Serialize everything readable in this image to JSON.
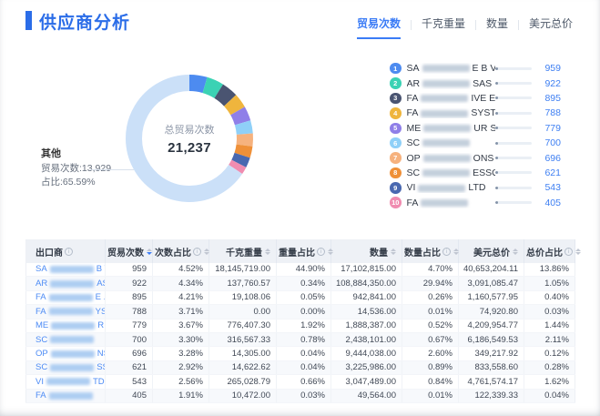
{
  "page": {
    "title": "供应商分析"
  },
  "tabs": [
    {
      "label": "贸易次数",
      "active": true,
      "divider": true
    },
    {
      "label": "千克重量",
      "active": false,
      "divider": true
    },
    {
      "label": "数量",
      "active": false,
      "divider": true
    },
    {
      "label": "美元总价",
      "active": false
    }
  ],
  "chart_data": {
    "type": "pie",
    "title": "总贸易次数",
    "center_label": "总贸易次数",
    "center_value": "21,237",
    "total": 21237,
    "callout": {
      "title": "其他",
      "count_line": "贸易次数:13,929",
      "pct_line": "占比:65.59%"
    },
    "segments": [
      {
        "name": "SA… E B V",
        "value": 959,
        "pct": 4.52,
        "color": "#4D8BF0"
      },
      {
        "name": "AR… SAS",
        "value": 922,
        "pct": 4.34,
        "color": "#3BD2B4"
      },
      {
        "name": "FA… IVE E…",
        "value": 895,
        "pct": 4.21,
        "color": "#4A5471"
      },
      {
        "name": "FA… SYST…",
        "value": 788,
        "pct": 3.71,
        "color": "#EFB53D"
      },
      {
        "name": "ME… UR SL",
        "value": 779,
        "pct": 3.67,
        "color": "#8F7FE8"
      },
      {
        "name": "SC…",
        "value": 700,
        "pct": 3.3,
        "color": "#8FD0F8"
      },
      {
        "name": "OP… ONS",
        "value": 696,
        "pct": 3.28,
        "color": "#F6B27E"
      },
      {
        "name": "SC… ESSO…",
        "value": 621,
        "pct": 2.92,
        "color": "#EF9038"
      },
      {
        "name": "VI… LTD",
        "value": 543,
        "pct": 2.56,
        "color": "#4968B0"
      },
      {
        "name": "FA…",
        "value": 405,
        "pct": 1.91,
        "color": "#F08CB0"
      },
      {
        "name": "其他",
        "value": 13929,
        "pct": 65.59,
        "color": "#CBE0F8"
      }
    ]
  },
  "legend": {
    "items": [
      {
        "rank": "1",
        "prefix": "SA",
        "suffix": "E B V",
        "value": "959",
        "pct": 4.52,
        "color": "#4D8BF0"
      },
      {
        "rank": "2",
        "prefix": "AR",
        "suffix": "SAS",
        "value": "922",
        "pct": 4.34,
        "color": "#3BD2B4"
      },
      {
        "rank": "3",
        "prefix": "FA",
        "suffix": "IVE E...",
        "value": "895",
        "pct": 4.21,
        "color": "#4A5471"
      },
      {
        "rank": "4",
        "prefix": "FA",
        "suffix": "SYST...",
        "value": "788",
        "pct": 3.71,
        "color": "#EFB53D"
      },
      {
        "rank": "5",
        "prefix": "ME",
        "suffix": "UR SL",
        "value": "779",
        "pct": 3.67,
        "color": "#8F7FE8"
      },
      {
        "rank": "6",
        "prefix": "SC",
        "suffix": "",
        "value": "700",
        "pct": 3.3,
        "color": "#8FD0F8"
      },
      {
        "rank": "7",
        "prefix": "OP",
        "suffix": "ONS",
        "value": "696",
        "pct": 3.28,
        "color": "#F6B27E"
      },
      {
        "rank": "8",
        "prefix": "SC",
        "suffix": "ESSO...",
        "value": "621",
        "pct": 2.92,
        "color": "#EF9038"
      },
      {
        "rank": "9",
        "prefix": "VI",
        "suffix": "LTD",
        "value": "543",
        "pct": 2.56,
        "color": "#4968B0"
      },
      {
        "rank": "10",
        "prefix": "FA",
        "suffix": "",
        "value": "405",
        "pct": 1.91,
        "color": "#F08CB0"
      }
    ]
  },
  "table": {
    "columns": [
      {
        "label": "出口商",
        "info": true,
        "sort": false
      },
      {
        "label": "贸易次数",
        "info": false,
        "sort": true,
        "sorted": "desc"
      },
      {
        "label": "次数占比",
        "info": true,
        "sort": true
      },
      {
        "label": "千克重量",
        "info": false,
        "sort": true
      },
      {
        "label": "重量占比",
        "info": true,
        "sort": true
      },
      {
        "label": "数量",
        "info": false,
        "sort": true
      },
      {
        "label": "数量占比",
        "info": true,
        "sort": true
      },
      {
        "label": "美元总价",
        "info": false,
        "sort": true
      },
      {
        "label": "总价占比",
        "info": true,
        "sort": true
      }
    ],
    "rows": [
      {
        "prefix": "SA",
        "suffix": "B V",
        "cells": [
          "959",
          "4.52%",
          "18,145,719.00",
          "44.90%",
          "17,102,815.00",
          "4.70%",
          "40,653,204.11",
          "13.86%"
        ]
      },
      {
        "prefix": "AR",
        "suffix": "AS",
        "cells": [
          "922",
          "4.34%",
          "137,760.57",
          "0.34%",
          "108,884,350.00",
          "29.94%",
          "3,091,085.47",
          "1.05%"
        ]
      },
      {
        "prefix": "FA",
        "suffix": "E ...",
        "cells": [
          "895",
          "4.21%",
          "19,108.06",
          "0.05%",
          "942,841.00",
          "0.26%",
          "1,160,577.95",
          "0.40%"
        ]
      },
      {
        "prefix": "FA",
        "suffix": "YS...",
        "cells": [
          "788",
          "3.71%",
          "0.00",
          "0.00%",
          "14,536.00",
          "0.01%",
          "74,920.80",
          "0.03%"
        ]
      },
      {
        "prefix": "ME",
        "suffix": "R SL",
        "cells": [
          "779",
          "3.67%",
          "776,407.30",
          "1.92%",
          "1,888,387.00",
          "0.52%",
          "4,209,954.77",
          "1.44%"
        ]
      },
      {
        "prefix": "SC",
        "suffix": "",
        "cells": [
          "700",
          "3.30%",
          "316,567.33",
          "0.78%",
          "2,438,101.00",
          "0.67%",
          "6,186,549.53",
          "2.11%"
        ]
      },
      {
        "prefix": "OP",
        "suffix": "NS",
        "cells": [
          "696",
          "3.28%",
          "14,305.00",
          "0.04%",
          "9,444,038.00",
          "2.60%",
          "349,217.92",
          "0.12%"
        ]
      },
      {
        "prefix": "SC",
        "suffix": "SS...",
        "cells": [
          "621",
          "2.92%",
          "14,622.62",
          "0.04%",
          "3,225,986.00",
          "0.89%",
          "833,558.60",
          "0.28%"
        ]
      },
      {
        "prefix": "VI",
        "suffix": "TD",
        "cells": [
          "543",
          "2.56%",
          "265,028.79",
          "0.66%",
          "3,047,489.00",
          "0.84%",
          "4,761,574.17",
          "1.62%"
        ]
      },
      {
        "prefix": "FA",
        "suffix": "",
        "cells": [
          "405",
          "1.91%",
          "10,472.00",
          "0.03%",
          "49,564.00",
          "0.01%",
          "122,339.33",
          "0.04%"
        ]
      }
    ]
  }
}
